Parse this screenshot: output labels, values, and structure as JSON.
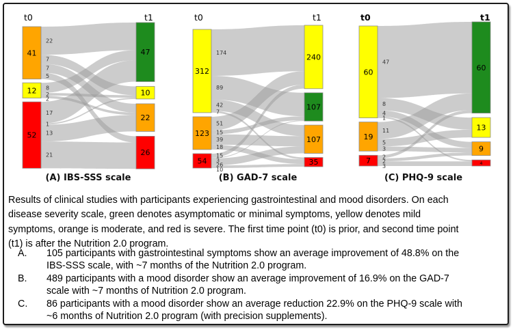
{
  "figure": {
    "background": "#ffffff",
    "flow_color": "#999999",
    "node_colors": {
      "green": "#1E8B1E",
      "yellow": "#FFFF00",
      "orange": "#FFA500",
      "red": "#FF0000"
    }
  },
  "chart_data": [
    {
      "type": "sankey",
      "caption": "(A) IBS-SSS scale",
      "columns": [
        "t0",
        "t1"
      ],
      "t0_nodes": [
        {
          "label": "41",
          "value": 41,
          "color": "#FFA500"
        },
        {
          "label": "12",
          "value": 12,
          "color": "#FFFF00"
        },
        {
          "label": "52",
          "value": 52,
          "color": "#FF0000"
        }
      ],
      "t1_nodes": [
        {
          "label": "47",
          "value": 47,
          "color": "#1E8B1E"
        },
        {
          "label": "10",
          "value": 10,
          "color": "#FFFF00"
        },
        {
          "label": "22",
          "value": 22,
          "color": "#FFA500"
        },
        {
          "label": "26",
          "value": 26,
          "color": "#FF0000"
        }
      ],
      "flows": [
        {
          "from": 0,
          "to": 0,
          "value": 22
        },
        {
          "from": 0,
          "to": 1,
          "value": 7
        },
        {
          "from": 0,
          "to": 2,
          "value": 7
        },
        {
          "from": 0,
          "to": 3,
          "value": 5
        },
        {
          "from": 1,
          "to": 0,
          "value": 8
        },
        {
          "from": 1,
          "to": 1,
          "value": 2
        },
        {
          "from": 1,
          "to": 2,
          "value": 2
        },
        {
          "from": 2,
          "to": 0,
          "value": 17
        },
        {
          "from": 2,
          "to": 1,
          "value": 1
        },
        {
          "from": 2,
          "to": 2,
          "value": 13
        },
        {
          "from": 2,
          "to": 3,
          "value": 21
        }
      ]
    },
    {
      "type": "sankey",
      "caption": "(B) GAD-7 scale",
      "columns": [
        "t0",
        "t1"
      ],
      "t0_nodes": [
        {
          "label": "312",
          "value": 312,
          "color": "#FFFF00"
        },
        {
          "label": "123",
          "value": 123,
          "color": "#FFA500"
        },
        {
          "label": "54",
          "value": 54,
          "color": "#FF0000"
        }
      ],
      "t1_nodes": [
        {
          "label": "240",
          "value": 240,
          "color": "#FFFF00"
        },
        {
          "label": "107",
          "value": 107,
          "color": "#1E8B1E"
        },
        {
          "label": "107",
          "value": 107,
          "color": "#FFA500"
        },
        {
          "label": "35",
          "value": 35,
          "color": "#FF0000"
        }
      ],
      "flows": [
        {
          "from": 0,
          "to": 0,
          "value": 174
        },
        {
          "from": 0,
          "to": 1,
          "value": 89
        },
        {
          "from": 0,
          "to": 2,
          "value": 42
        },
        {
          "from": 0,
          "to": 3,
          "value": 7
        },
        {
          "from": 1,
          "to": 0,
          "value": 51
        },
        {
          "from": 1,
          "to": 1,
          "value": 15
        },
        {
          "from": 1,
          "to": 2,
          "value": 39
        },
        {
          "from": 1,
          "to": 3,
          "value": 18
        },
        {
          "from": 2,
          "to": 0,
          "value": 15
        },
        {
          "from": 2,
          "to": 1,
          "value": 3
        },
        {
          "from": 2,
          "to": 2,
          "value": 26
        },
        {
          "from": 2,
          "to": 3,
          "value": 10
        }
      ]
    },
    {
      "type": "sankey",
      "caption": "(C) PHQ-9 scale",
      "columns": [
        "t0",
        "t1"
      ],
      "t0_nodes": [
        {
          "label": "60",
          "value": 60,
          "color": "#FFFF00"
        },
        {
          "label": "19",
          "value": 19,
          "color": "#FFA500"
        },
        {
          "label": "7",
          "value": 7,
          "color": "#FF0000"
        }
      ],
      "t1_nodes": [
        {
          "label": "60",
          "value": 60,
          "color": "#1E8B1E"
        },
        {
          "label": "13",
          "value": 13,
          "color": "#FFFF00"
        },
        {
          "label": "9",
          "value": 9,
          "color": "#FFA500"
        },
        {
          "label": "4",
          "value": 4,
          "color": "#FF0000"
        }
      ],
      "flows": [
        {
          "from": 0,
          "to": 0,
          "value": 47
        },
        {
          "from": 0,
          "to": 1,
          "value": 8
        },
        {
          "from": 0,
          "to": 2,
          "value": 4
        },
        {
          "from": 0,
          "to": 3,
          "value": 1
        },
        {
          "from": 1,
          "to": 0,
          "value": 11
        },
        {
          "from": 1,
          "to": 1,
          "value": 5
        },
        {
          "from": 1,
          "to": 2,
          "value": 3
        },
        {
          "from": 2,
          "to": 0,
          "value": 2
        },
        {
          "from": 2,
          "to": 2,
          "value": 2
        },
        {
          "from": 2,
          "to": 3,
          "value": 3
        }
      ]
    }
  ],
  "description": {
    "lines": [
      "Results of clinical studies with participants experiencing gastrointestinal and mood disorders. On each",
      "disease severity scale, green denotes asymptomatic or minimal symptoms, yellow denotes mild",
      "symptoms, orange is moderate, and red is severe. The first time point (t0) is prior, and second time point",
      "(t1) is after the Nutrition 2.0 program."
    ]
  },
  "items": [
    {
      "marker": "A.",
      "lines": [
        "105 participants with gastrointestinal symptoms show an average improvement of 48.8% on the",
        "IBS-SSS scale, with ~7 months of the Nutrition 2.0 program."
      ]
    },
    {
      "marker": "B.",
      "lines": [
        "489 participants with a mood disorder show an average improvement of 16.9% on the GAD-7",
        "scale with ~7 months of Nutrition 2.0 program."
      ]
    },
    {
      "marker": "C.",
      "lines": [
        "86 participants with a mood disorder show an average reduction 22.9% on the PHQ-9 scale with",
        "~6 months of Nutrition 2.0 program (with precision supplements)."
      ]
    }
  ]
}
